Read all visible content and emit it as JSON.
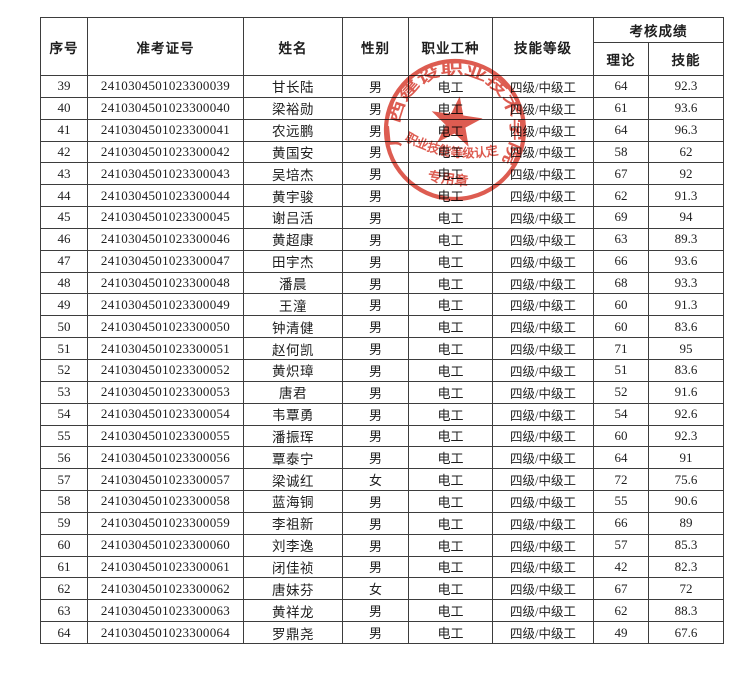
{
  "colors": {
    "ink": "#1d1d1d",
    "line": "#3d3d3d",
    "seal": "#d6392b",
    "paper": "#ffffff"
  },
  "table": {
    "headers": {
      "serial": "序号",
      "ticket": "准考证号",
      "name": "姓名",
      "gender": "性别",
      "trade": "职业工种",
      "level": "技能等级",
      "score_group": "考核成绩",
      "theory": "理论",
      "skill": "技能"
    },
    "rows": [
      {
        "no": "39",
        "ticket": "2410304501023300039",
        "name": "甘长陆",
        "gender": "男",
        "trade": "电工",
        "level": "四级/中级工",
        "theory": "64",
        "skill": "92.3"
      },
      {
        "no": "40",
        "ticket": "2410304501023300040",
        "name": "梁裕勋",
        "gender": "男",
        "trade": "电工",
        "level": "四级/中级工",
        "theory": "61",
        "skill": "93.6"
      },
      {
        "no": "41",
        "ticket": "2410304501023300041",
        "name": "农远鹏",
        "gender": "男",
        "trade": "电工",
        "level": "四级/中级工",
        "theory": "64",
        "skill": "96.3"
      },
      {
        "no": "42",
        "ticket": "2410304501023300042",
        "name": "黄国安",
        "gender": "男",
        "trade": "电工",
        "level": "四级/中级工",
        "theory": "58",
        "skill": "62"
      },
      {
        "no": "43",
        "ticket": "2410304501023300043",
        "name": "吴培杰",
        "gender": "男",
        "trade": "电工",
        "level": "四级/中级工",
        "theory": "67",
        "skill": "92"
      },
      {
        "no": "44",
        "ticket": "2410304501023300044",
        "name": "黄宇骏",
        "gender": "男",
        "trade": "电工",
        "level": "四级/中级工",
        "theory": "62",
        "skill": "91.3"
      },
      {
        "no": "45",
        "ticket": "2410304501023300045",
        "name": "谢吕活",
        "gender": "男",
        "trade": "电工",
        "level": "四级/中级工",
        "theory": "69",
        "skill": "94"
      },
      {
        "no": "46",
        "ticket": "2410304501023300046",
        "name": "黄超康",
        "gender": "男",
        "trade": "电工",
        "level": "四级/中级工",
        "theory": "63",
        "skill": "89.3"
      },
      {
        "no": "47",
        "ticket": "2410304501023300047",
        "name": "田宇杰",
        "gender": "男",
        "trade": "电工",
        "level": "四级/中级工",
        "theory": "66",
        "skill": "93.6"
      },
      {
        "no": "48",
        "ticket": "2410304501023300048",
        "name": "潘晨",
        "gender": "男",
        "trade": "电工",
        "level": "四级/中级工",
        "theory": "68",
        "skill": "93.3"
      },
      {
        "no": "49",
        "ticket": "2410304501023300049",
        "name": "王潼",
        "gender": "男",
        "trade": "电工",
        "level": "四级/中级工",
        "theory": "60",
        "skill": "91.3"
      },
      {
        "no": "50",
        "ticket": "2410304501023300050",
        "name": "钟清健",
        "gender": "男",
        "trade": "电工",
        "level": "四级/中级工",
        "theory": "60",
        "skill": "83.6"
      },
      {
        "no": "51",
        "ticket": "2410304501023300051",
        "name": "赵何凯",
        "gender": "男",
        "trade": "电工",
        "level": "四级/中级工",
        "theory": "71",
        "skill": "95"
      },
      {
        "no": "52",
        "ticket": "2410304501023300052",
        "name": "黄炽璋",
        "gender": "男",
        "trade": "电工",
        "level": "四级/中级工",
        "theory": "51",
        "skill": "83.6"
      },
      {
        "no": "53",
        "ticket": "2410304501023300053",
        "name": "唐君",
        "gender": "男",
        "trade": "电工",
        "level": "四级/中级工",
        "theory": "52",
        "skill": "91.6"
      },
      {
        "no": "54",
        "ticket": "2410304501023300054",
        "name": "韦覃勇",
        "gender": "男",
        "trade": "电工",
        "level": "四级/中级工",
        "theory": "54",
        "skill": "92.6"
      },
      {
        "no": "55",
        "ticket": "2410304501023300055",
        "name": "潘振珲",
        "gender": "男",
        "trade": "电工",
        "level": "四级/中级工",
        "theory": "60",
        "skill": "92.3"
      },
      {
        "no": "56",
        "ticket": "2410304501023300056",
        "name": "覃泰宁",
        "gender": "男",
        "trade": "电工",
        "level": "四级/中级工",
        "theory": "64",
        "skill": "91"
      },
      {
        "no": "57",
        "ticket": "2410304501023300057",
        "name": "梁诚红",
        "gender": "女",
        "trade": "电工",
        "level": "四级/中级工",
        "theory": "72",
        "skill": "75.6"
      },
      {
        "no": "58",
        "ticket": "2410304501023300058",
        "name": "蓝海铜",
        "gender": "男",
        "trade": "电工",
        "level": "四级/中级工",
        "theory": "55",
        "skill": "90.6"
      },
      {
        "no": "59",
        "ticket": "2410304501023300059",
        "name": "李祖新",
        "gender": "男",
        "trade": "电工",
        "level": "四级/中级工",
        "theory": "66",
        "skill": "89"
      },
      {
        "no": "60",
        "ticket": "2410304501023300060",
        "name": "刘李逸",
        "gender": "男",
        "trade": "电工",
        "level": "四级/中级工",
        "theory": "57",
        "skill": "85.3"
      },
      {
        "no": "61",
        "ticket": "2410304501023300061",
        "name": "闭佳祯",
        "gender": "男",
        "trade": "电工",
        "level": "四级/中级工",
        "theory": "42",
        "skill": "82.3"
      },
      {
        "no": "62",
        "ticket": "2410304501023300062",
        "name": "唐妹芬",
        "gender": "女",
        "trade": "电工",
        "level": "四级/中级工",
        "theory": "67",
        "skill": "72"
      },
      {
        "no": "63",
        "ticket": "2410304501023300063",
        "name": "黄祥龙",
        "gender": "男",
        "trade": "电工",
        "level": "四级/中级工",
        "theory": "62",
        "skill": "88.3"
      },
      {
        "no": "64",
        "ticket": "2410304501023300064",
        "name": "罗鼎尧",
        "gender": "男",
        "trade": "电工",
        "level": "四级/中级工",
        "theory": "49",
        "skill": "67.6"
      }
    ]
  },
  "stamp": {
    "ring_text": "广西建设职业技术学院",
    "line1": "职业技能等级认定",
    "line2": "专用章",
    "color": "#d6392b"
  }
}
